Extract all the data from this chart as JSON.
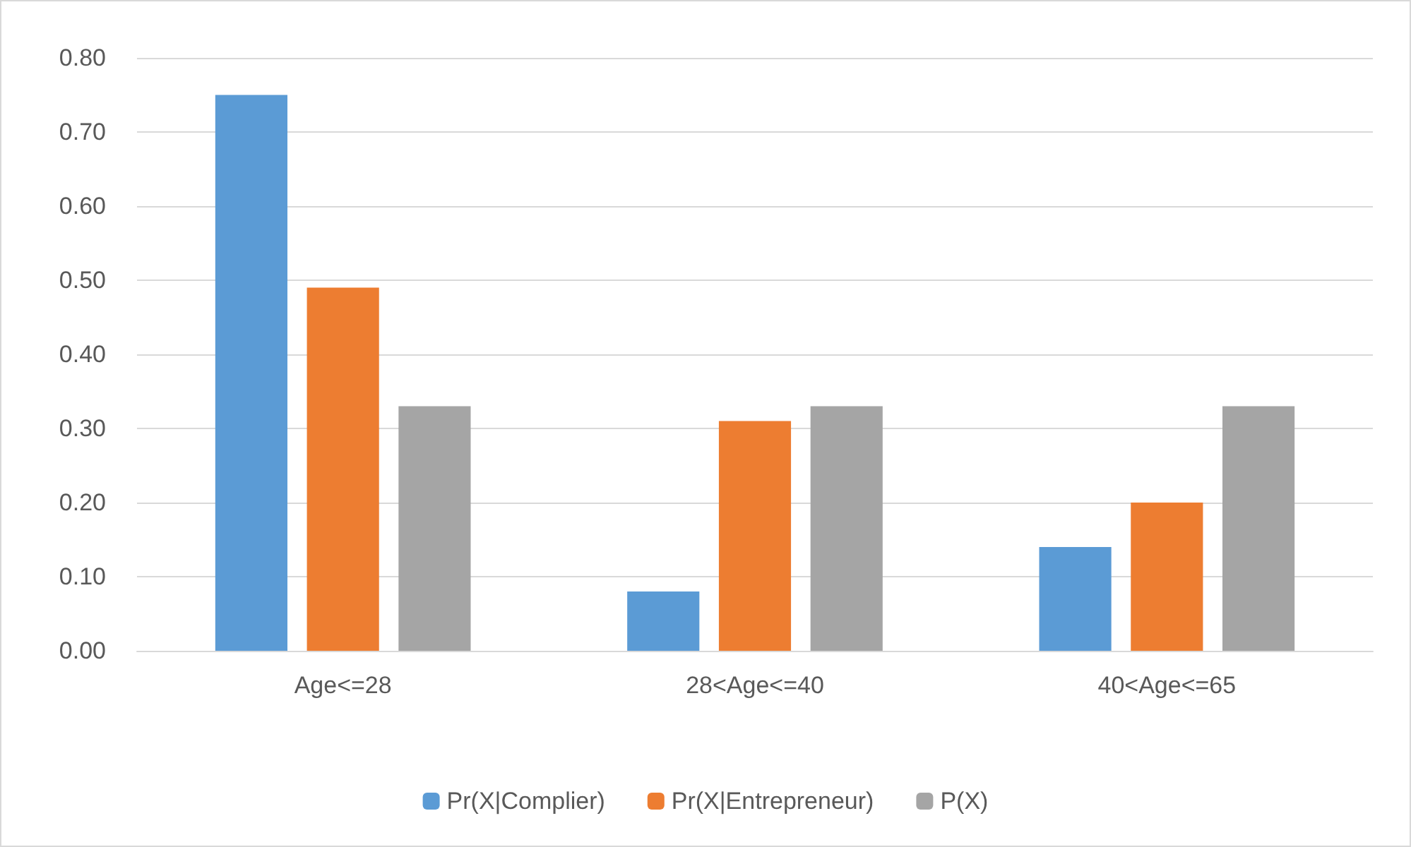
{
  "chart_data": {
    "type": "bar",
    "categories": [
      "Age<=28",
      "28<Age<=40",
      "40<Age<=65"
    ],
    "series": [
      {
        "name": "Pr(X|Complier)",
        "color": "#5b9bd5",
        "values": [
          0.75,
          0.08,
          0.14
        ]
      },
      {
        "name": "Pr(X|Entrepreneur)",
        "color": "#ed7d31",
        "values": [
          0.49,
          0.31,
          0.2
        ]
      },
      {
        "name": "P(X)",
        "color": "#a5a5a5",
        "values": [
          0.33,
          0.33,
          0.33
        ]
      }
    ],
    "ylim": [
      0,
      0.8
    ],
    "yticks": [
      {
        "value": 0,
        "label": "0.00"
      },
      {
        "value": 0.1,
        "label": "0.10"
      },
      {
        "value": 0.2,
        "label": "0.20"
      },
      {
        "value": 0.3,
        "label": "0.30"
      },
      {
        "value": 0.4,
        "label": "0.40"
      },
      {
        "value": 0.5,
        "label": "0.50"
      },
      {
        "value": 0.6,
        "label": "0.60"
      },
      {
        "value": 0.7,
        "label": "0.70"
      },
      {
        "value": 0.8,
        "label": "0.80"
      }
    ],
    "grid": "y",
    "legend": "bottom"
  }
}
